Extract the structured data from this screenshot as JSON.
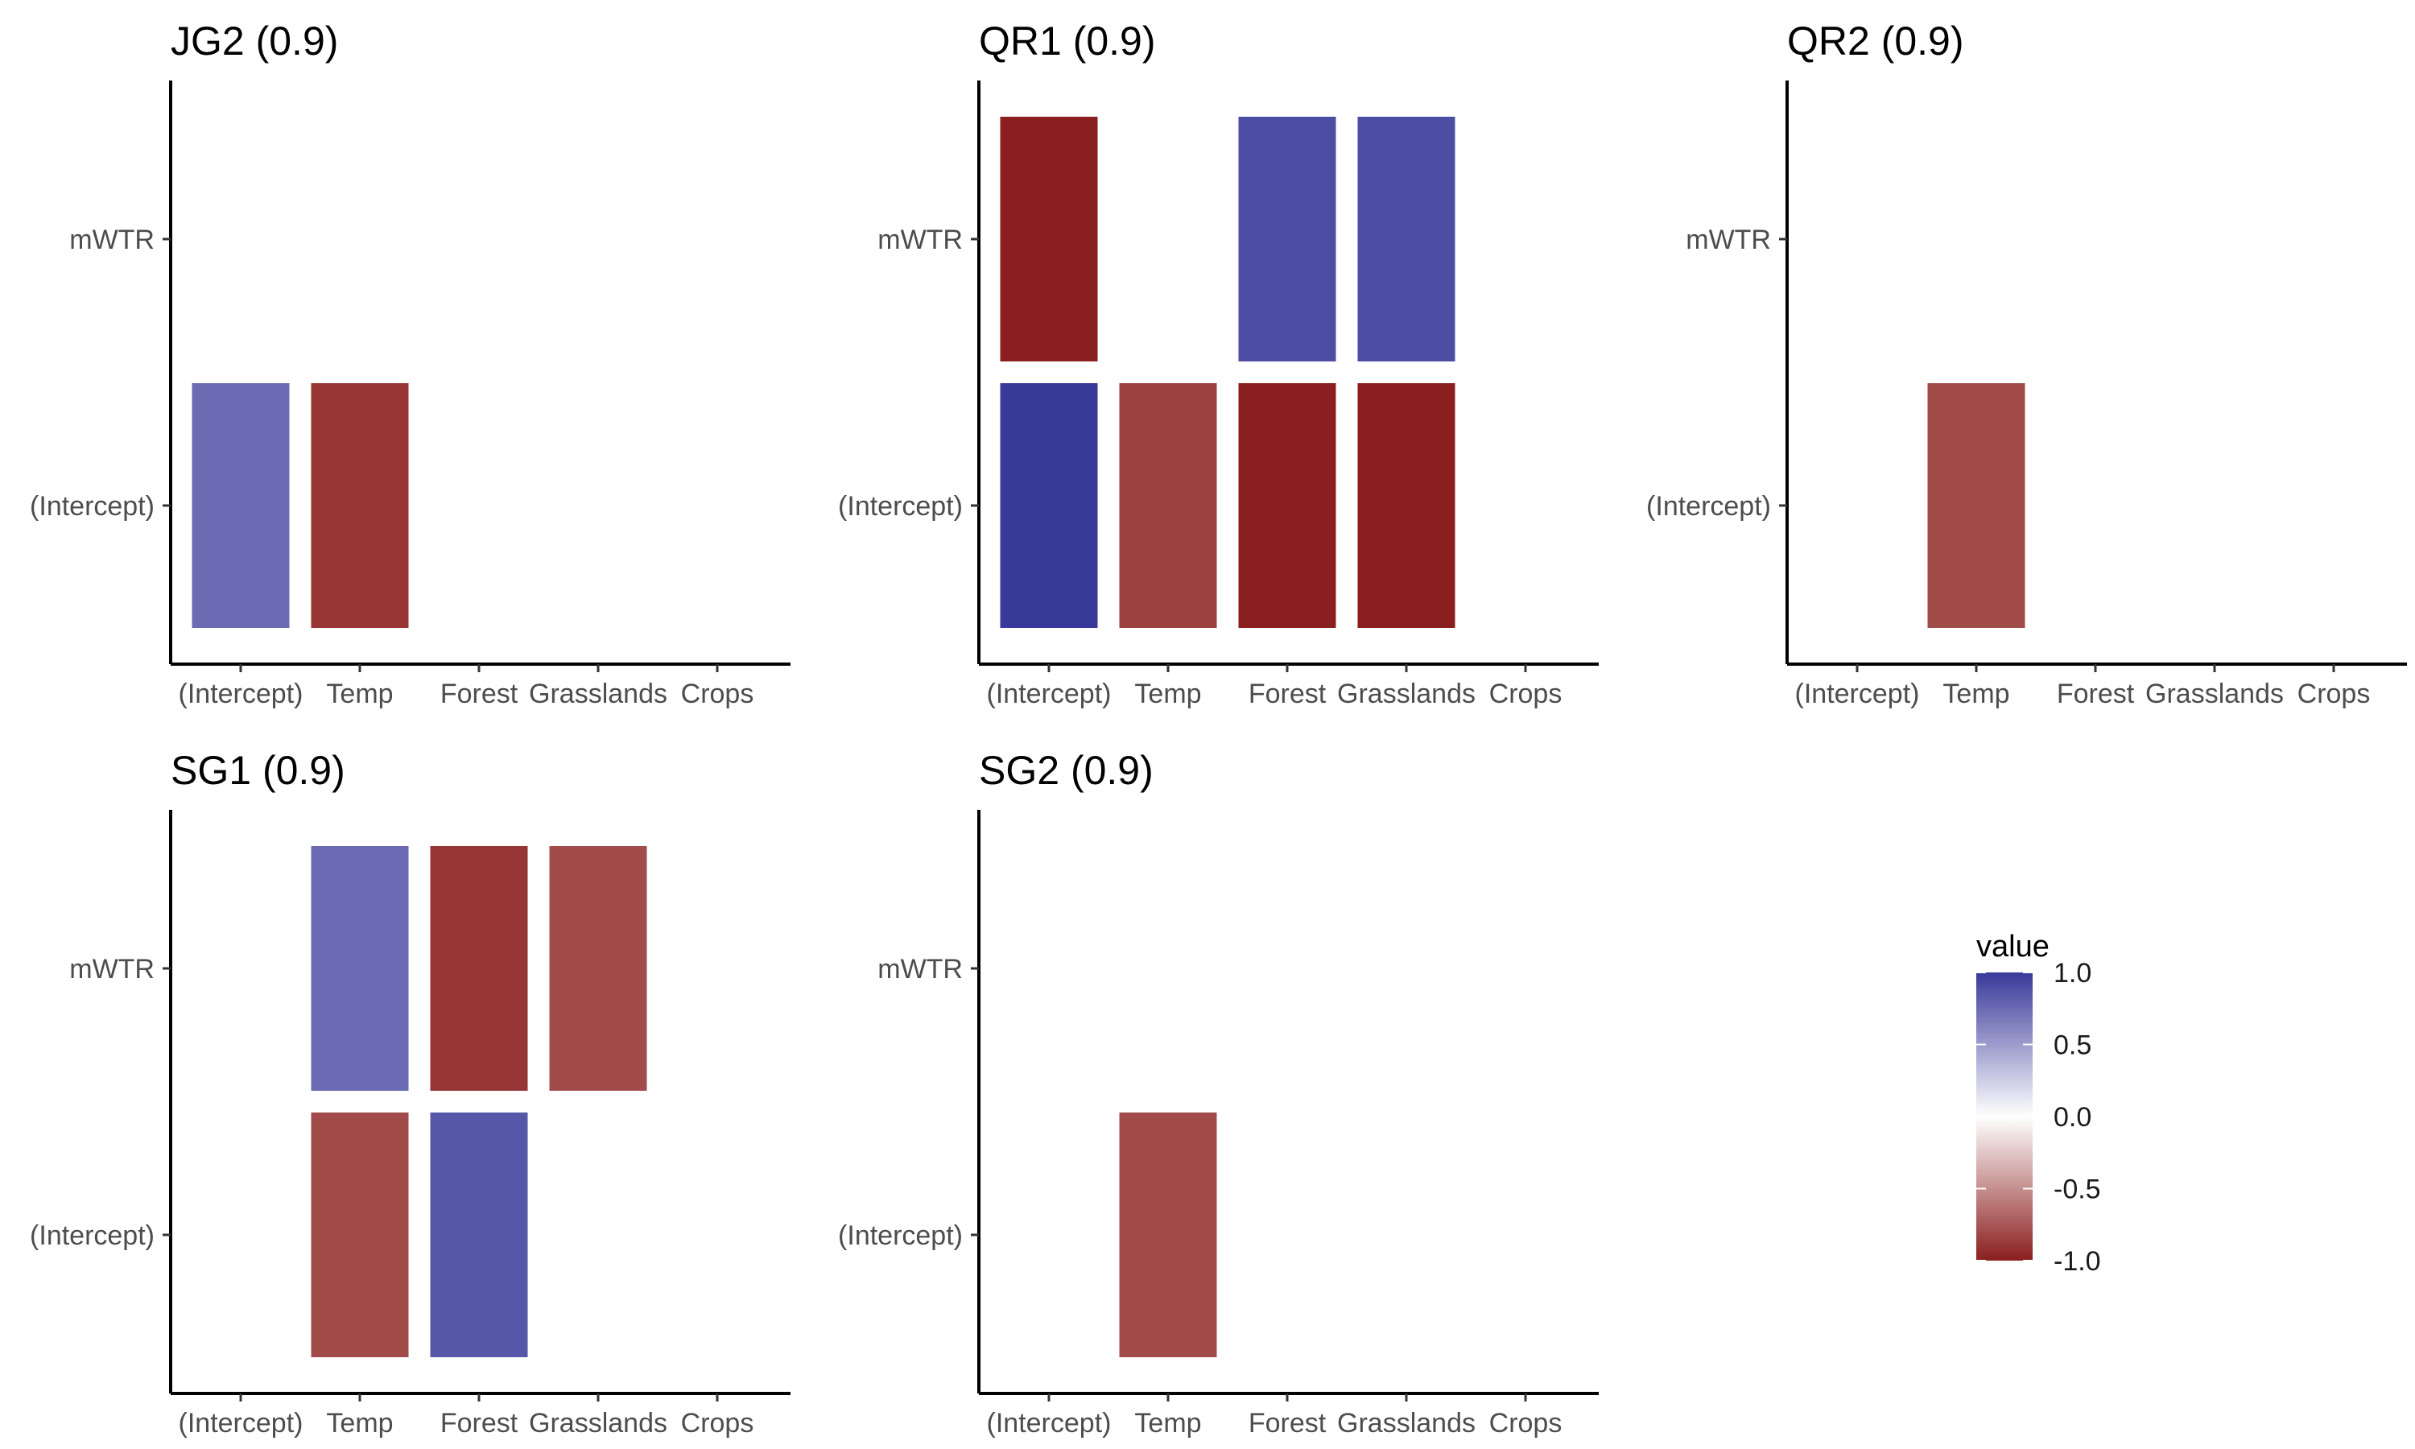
{
  "chart_data": {
    "type": "heatmap",
    "x_categories": [
      "(Intercept)",
      "Temp",
      "Forest",
      "Grasslands",
      "Crops"
    ],
    "y_categories": [
      "(Intercept)",
      "mWTR"
    ],
    "color_scale": {
      "low": "#8b1e1e",
      "mid": "#ffffff",
      "high": "#39399a",
      "limits": [
        -1,
        1
      ]
    },
    "panels": [
      {
        "title": "JG2 (0.9)",
        "cells": [
          {
            "x": "(Intercept)",
            "y": "(Intercept)",
            "value": 0.75
          },
          {
            "x": "Temp",
            "y": "(Intercept)",
            "value": -0.9
          }
        ]
      },
      {
        "title": "QR1 (0.9)",
        "cells": [
          {
            "x": "(Intercept)",
            "y": "mWTR",
            "value": -1.0
          },
          {
            "x": "Forest",
            "y": "mWTR",
            "value": 0.9
          },
          {
            "x": "Grasslands",
            "y": "mWTR",
            "value": 0.9
          },
          {
            "x": "(Intercept)",
            "y": "(Intercept)",
            "value": 1.0
          },
          {
            "x": "Temp",
            "y": "(Intercept)",
            "value": -0.85
          },
          {
            "x": "Forest",
            "y": "(Intercept)",
            "value": -1.0
          },
          {
            "x": "Grasslands",
            "y": "(Intercept)",
            "value": -1.0
          }
        ]
      },
      {
        "title": "QR2 (0.9)",
        "cells": [
          {
            "x": "Temp",
            "y": "(Intercept)",
            "value": -0.8
          }
        ]
      },
      {
        "title": "SG1 (0.9)",
        "cells": [
          {
            "x": "Temp",
            "y": "mWTR",
            "value": 0.75
          },
          {
            "x": "Forest",
            "y": "mWTR",
            "value": -0.9
          },
          {
            "x": "Grasslands",
            "y": "mWTR",
            "value": -0.8
          },
          {
            "x": "Temp",
            "y": "(Intercept)",
            "value": -0.8
          },
          {
            "x": "Forest",
            "y": "(Intercept)",
            "value": 0.85
          }
        ]
      },
      {
        "title": "SG2 (0.9)",
        "cells": [
          {
            "x": "Temp",
            "y": "(Intercept)",
            "value": -0.8
          }
        ]
      }
    ],
    "legend": {
      "title": "value",
      "breaks": [
        "1.0",
        "0.5",
        "0.0",
        "-0.5",
        "-1.0"
      ]
    }
  }
}
